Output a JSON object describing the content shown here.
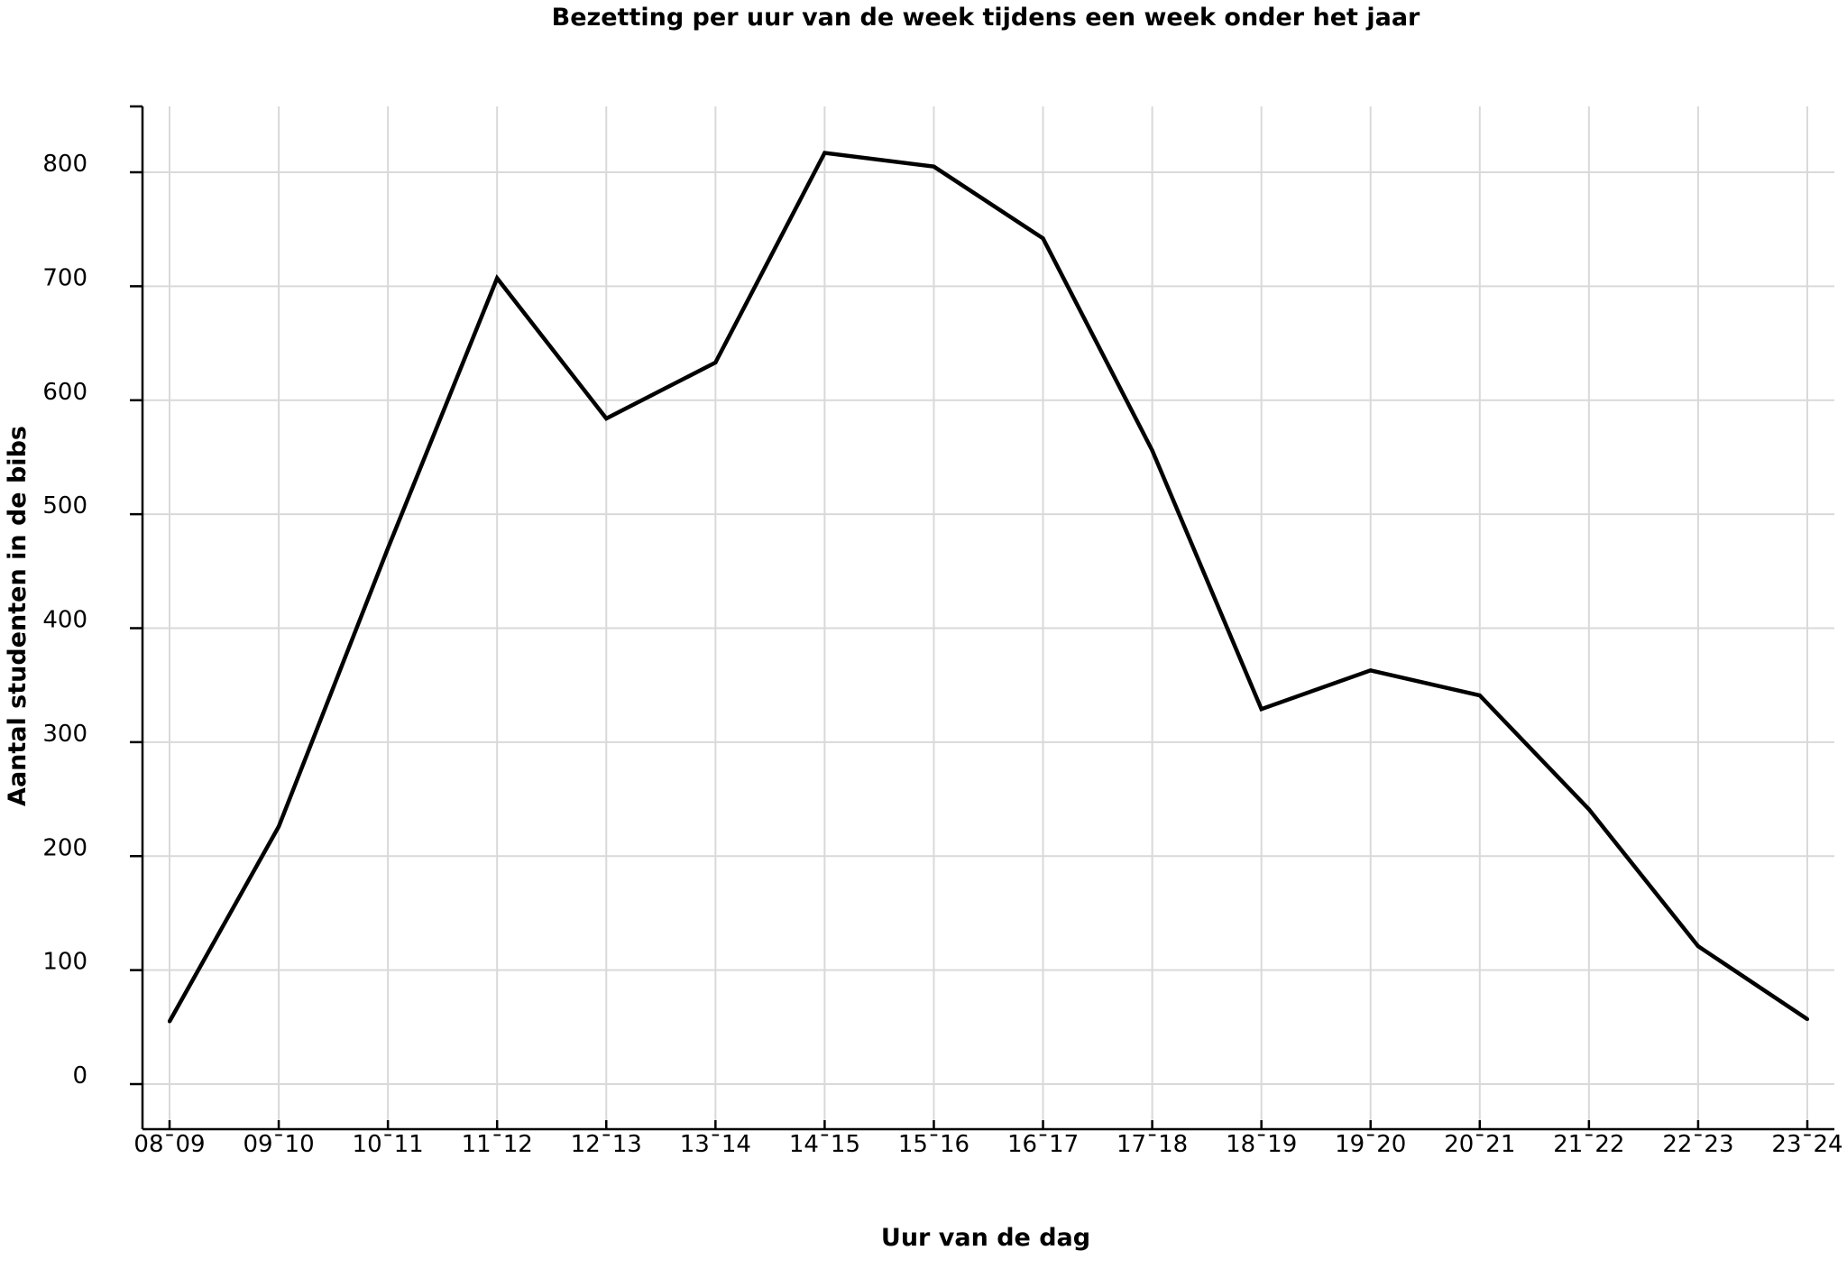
{
  "chart_data": {
    "type": "line",
    "title": "Bezetting per uur van de week tijdens een week onder het jaar",
    "xlabel": "Uur van de dag",
    "ylabel": "Aantal studenten in de bibs",
    "categories": [
      "08-09",
      "09-10",
      "10-11",
      "11-12",
      "12-13",
      "13-14",
      "14-15",
      "15-16",
      "16-17",
      "17-18",
      "18-19",
      "19-20",
      "20-21",
      "21-22",
      "22-23",
      "23-24"
    ],
    "x_tick_labels": [
      "08ˉ09",
      "09ˉ10",
      "10ˉ11",
      "11ˉ12",
      "12ˉ13",
      "13ˉ14",
      "14ˉ15",
      "15ˉ16",
      "16ˉ17",
      "17ˉ18",
      "18ˉ19",
      "19ˉ20",
      "20ˉ21",
      "21ˉ22",
      "22ˉ23",
      "23ˉ24"
    ],
    "series": [
      {
        "values": [
          55,
          226,
          470,
          707,
          584,
          633,
          817,
          805,
          742,
          556,
          329,
          363,
          341,
          241,
          121,
          57
        ]
      }
    ],
    "yticks": [
      0,
      100,
      200,
      300,
      400,
      500,
      600,
      700,
      800
    ],
    "ytick_labels": [
      "0",
      "100",
      "200",
      "300",
      "400",
      "500",
      "600",
      "700",
      "800"
    ],
    "ylim": [
      -40,
      860
    ],
    "grid": true,
    "line_color": "#000000",
    "grid_color": "#d9d9d9"
  }
}
